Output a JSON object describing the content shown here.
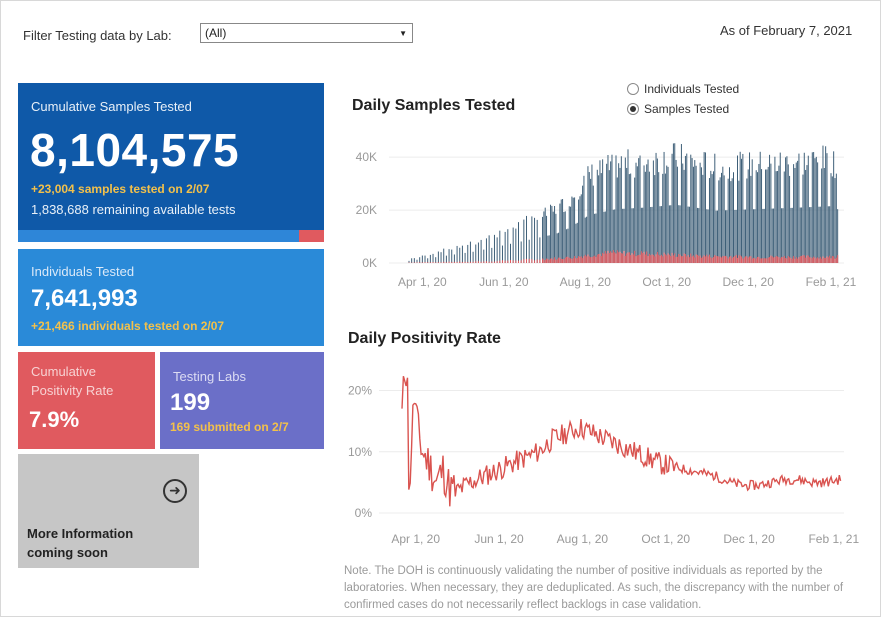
{
  "filter": {
    "label": "Filter Testing data by Lab:",
    "selected": "(All)"
  },
  "as_of": "As of February 7, 2021",
  "cards": {
    "cumulative": {
      "title": "Cumulative Samples Tested",
      "value": "8,104,575",
      "delta": "+23,004 samples tested on 2/07",
      "remaining": "1,838,688 remaining available tests",
      "progress_used": 0.918
    },
    "individuals": {
      "title": "Individuals Tested",
      "value": "7,641,993",
      "delta": "+21,466  individuals  tested on 2/07"
    },
    "positivity": {
      "title_line1": "Cumulative",
      "title_line2": "Positivity Rate",
      "value": "7.9%"
    },
    "labs": {
      "title": "Testing Labs",
      "value": "199",
      "submitted": "169 submitted on 2/7"
    },
    "more": {
      "line1": "More Information",
      "line2": "coming soon",
      "icon": "arrow-circle-right-icon"
    }
  },
  "daily_samples": {
    "title": "Daily Samples Tested",
    "radio_options": [
      {
        "label": "Individuals Tested",
        "selected": false
      },
      {
        "label": "Samples Tested",
        "selected": true
      }
    ]
  },
  "daily_positivity": {
    "title": "Daily Positivity Rate"
  },
  "note": "Note. The DOH is continuously validating the number of positive individuals as reported by the laboratories. When necessary, they are deduplicated. As such, the discrepancy with the number of confirmed cases do not necessarily reflect backlogs in case validation.",
  "colors": {
    "bar_blue": "#3e5f78",
    "bar_red": "#e05a5f",
    "line_red": "#d9534f"
  },
  "chart_data": [
    {
      "type": "bar",
      "title": "Daily Samples Tested",
      "x_start": "2020-03-22",
      "days": 322,
      "x_tick_labels": [
        "Apr 1, 20",
        "Jun 1, 20",
        "Aug 1, 20",
        "Oct 1, 20",
        "Dec 1, 20",
        "Feb 1, 21"
      ],
      "x_tick_days": [
        10,
        71,
        132,
        193,
        254,
        316
      ],
      "y_tick_labels": [
        "0K",
        "20K",
        "40K"
      ],
      "y_tick_values": [
        0,
        20000,
        40000
      ],
      "ylim": [
        0,
        48000
      ],
      "series": [
        {
          "name": "Samples Tested",
          "anchors": [
            [
              0,
              1500
            ],
            [
              20,
              4000
            ],
            [
              50,
              8000
            ],
            [
              70,
              12000
            ],
            [
              90,
              16000
            ],
            [
              110,
              20000
            ],
            [
              120,
              24000
            ],
            [
              135,
              33000
            ],
            [
              155,
              37000
            ],
            [
              175,
              38000
            ],
            [
              200,
              40000
            ],
            [
              230,
              36000
            ],
            [
              260,
              37000
            ],
            [
              290,
              38000
            ],
            [
              315,
              39000
            ],
            [
              321,
              37000
            ]
          ]
        },
        {
          "name": "Positive",
          "anchors": [
            [
              0,
              200
            ],
            [
              60,
              600
            ],
            [
              120,
              2000
            ],
            [
              150,
              3800
            ],
            [
              180,
              3500
            ],
            [
              220,
              2600
            ],
            [
              260,
              2300
            ],
            [
              321,
              2300
            ]
          ]
        }
      ]
    },
    {
      "type": "line",
      "title": "Daily Positivity Rate",
      "x_tick_labels": [
        "Apr 1, 20",
        "Jun 1, 20",
        "Aug 1, 20",
        "Oct 1, 20",
        "Dec 1, 20",
        "Feb 1, 21"
      ],
      "x_tick_days": [
        10,
        71,
        132,
        193,
        254,
        316
      ],
      "y_tick_labels": [
        "0%",
        "10%",
        "20%"
      ],
      "y_tick_values": [
        0,
        10,
        20
      ],
      "ylim": [
        0,
        24
      ],
      "series": [
        {
          "name": "Positivity Rate",
          "anchors": [
            [
              0,
              16
            ],
            [
              2,
              23
            ],
            [
              4,
              24
            ],
            [
              5,
              2
            ],
            [
              7,
              12
            ],
            [
              9,
              19
            ],
            [
              12,
              13
            ],
            [
              15,
              10
            ],
            [
              20,
              8
            ],
            [
              25,
              5
            ],
            [
              30,
              7
            ],
            [
              35,
              4
            ],
            [
              40,
              3.5
            ],
            [
              50,
              5
            ],
            [
              60,
              6
            ],
            [
              70,
              7
            ],
            [
              80,
              8
            ],
            [
              90,
              9
            ],
            [
              100,
              10
            ],
            [
              110,
              12
            ],
            [
              120,
              13
            ],
            [
              130,
              14
            ],
            [
              140,
              13
            ],
            [
              150,
              12
            ],
            [
              160,
              11
            ],
            [
              170,
              10
            ],
            [
              180,
              9
            ],
            [
              190,
              8
            ],
            [
              200,
              7.5
            ],
            [
              210,
              7
            ],
            [
              220,
              6.5
            ],
            [
              230,
              6
            ],
            [
              240,
              5
            ],
            [
              250,
              4.5
            ],
            [
              260,
              4.5
            ],
            [
              270,
              5
            ],
            [
              280,
              5.5
            ],
            [
              290,
              5.5
            ],
            [
              300,
              5
            ],
            [
              310,
              5
            ],
            [
              321,
              5.5
            ]
          ]
        }
      ]
    }
  ]
}
